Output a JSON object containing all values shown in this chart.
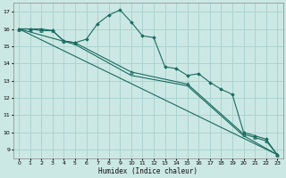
{
  "xlabel": "Humidex (Indice chaleur)",
  "ylabel": "",
  "bg_color": "#cce8e4",
  "grid_color": "#aad4d0",
  "line_color": "#1a6b60",
  "xlim": [
    -0.5,
    23.5
  ],
  "ylim": [
    8.5,
    17.5
  ],
  "xticks": [
    0,
    1,
    2,
    3,
    4,
    5,
    6,
    7,
    8,
    9,
    10,
    11,
    12,
    13,
    14,
    15,
    16,
    17,
    18,
    19,
    20,
    21,
    22,
    23
  ],
  "yticks": [
    9,
    10,
    11,
    12,
    13,
    14,
    15,
    16,
    17
  ],
  "series1_x": [
    0,
    1,
    2,
    3,
    4,
    5,
    6,
    7,
    8,
    9,
    10,
    11,
    12,
    13,
    14,
    15,
    16,
    17,
    18,
    19,
    20,
    21,
    22,
    23
  ],
  "series1_y": [
    16.0,
    16.0,
    16.0,
    15.9,
    15.3,
    15.2,
    15.4,
    16.3,
    16.8,
    17.1,
    16.4,
    15.6,
    15.5,
    13.8,
    13.7,
    13.3,
    13.4,
    12.9,
    12.5,
    12.2,
    10.0,
    9.8,
    9.6,
    8.7
  ],
  "series2_x": [
    0,
    1,
    2,
    3,
    4,
    5,
    10,
    15,
    20,
    21,
    22,
    23
  ],
  "series2_y": [
    16.0,
    16.0,
    15.9,
    15.9,
    15.3,
    15.2,
    13.5,
    12.8,
    9.9,
    9.7,
    9.5,
    8.7
  ],
  "series3_x": [
    0,
    23
  ],
  "series3_y": [
    16.0,
    8.7
  ],
  "series4_x": [
    0,
    5,
    10,
    15,
    20,
    23
  ],
  "series4_y": [
    16.0,
    15.1,
    13.3,
    12.7,
    9.8,
    8.7
  ]
}
